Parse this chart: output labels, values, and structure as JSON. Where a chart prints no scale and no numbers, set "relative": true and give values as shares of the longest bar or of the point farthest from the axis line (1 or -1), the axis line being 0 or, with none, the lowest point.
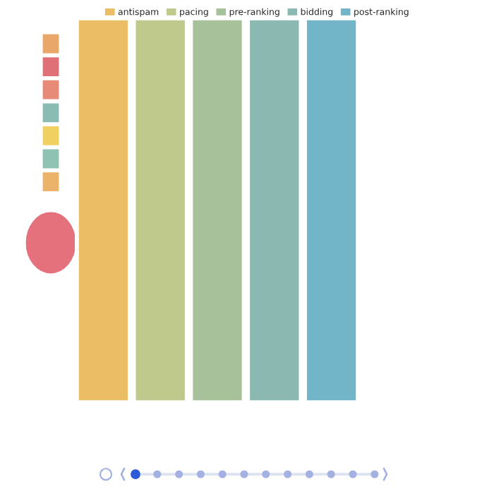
{
  "chart_data": {
    "type": "bar",
    "relative": true,
    "stacked": true,
    "categories": [
      null,
      null,
      null,
      null,
      null
    ],
    "series": [
      {
        "name": "antispam",
        "color": "#ebbd65",
        "values": [
          1,
          null,
          null,
          null,
          null
        ]
      },
      {
        "name": "pacing",
        "color": "#bec98b",
        "values": [
          null,
          1,
          null,
          null,
          null
        ]
      },
      {
        "name": "pre-ranking",
        "color": "#a7c19b",
        "values": [
          null,
          null,
          1,
          null,
          null
        ]
      },
      {
        "name": "bidding",
        "color": "#8bb9b2",
        "values": [
          null,
          null,
          null,
          1,
          null
        ]
      },
      {
        "name": "post-ranking",
        "color": "#72b4c8",
        "values": [
          null,
          null,
          null,
          null,
          1
        ]
      }
    ],
    "legend": "top"
  }
}
